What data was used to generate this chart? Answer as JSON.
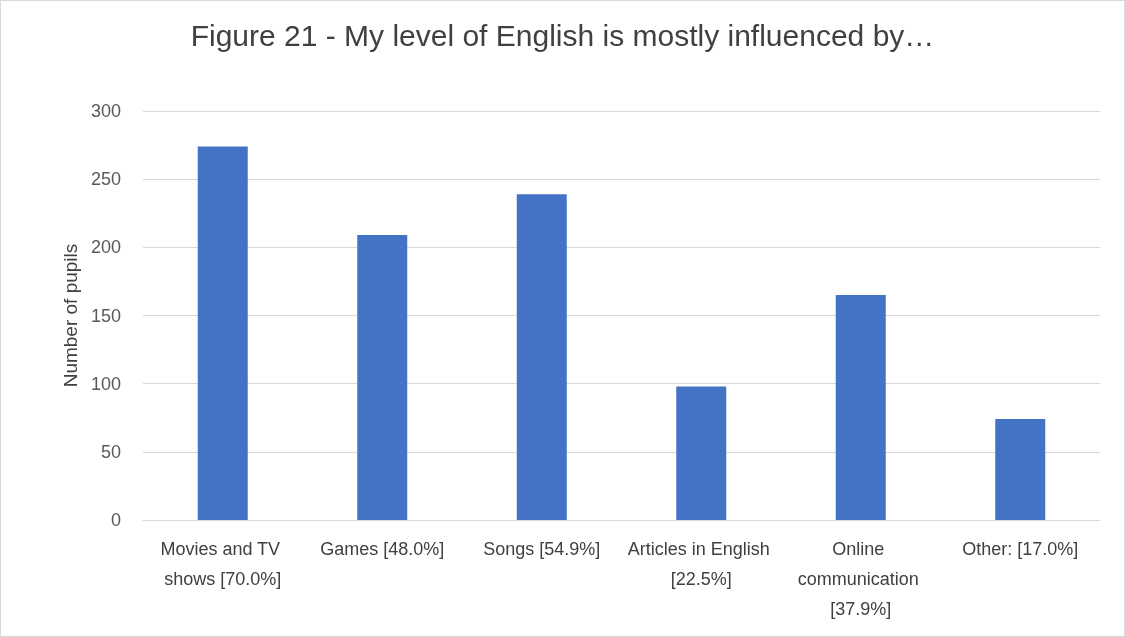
{
  "chart_data": {
    "type": "bar",
    "title": "Figure 21 - My level of English is mostly influenced by…",
    "ylabel": "Number of pupils",
    "categories": [
      "Movies and TV shows [70.0%]",
      "Games [48.0%]",
      "Songs [54.9%]",
      "Articles in English [22.5%]",
      "Online communication [37.9%]",
      "Other: [17.0%]"
    ],
    "values": [
      274,
      209,
      239,
      98,
      165,
      74
    ],
    "color": "#4472c4",
    "ylim": [
      0,
      300
    ],
    "yticks": [
      0,
      50,
      100,
      150,
      200,
      250,
      300
    ],
    "grid": "y"
  }
}
